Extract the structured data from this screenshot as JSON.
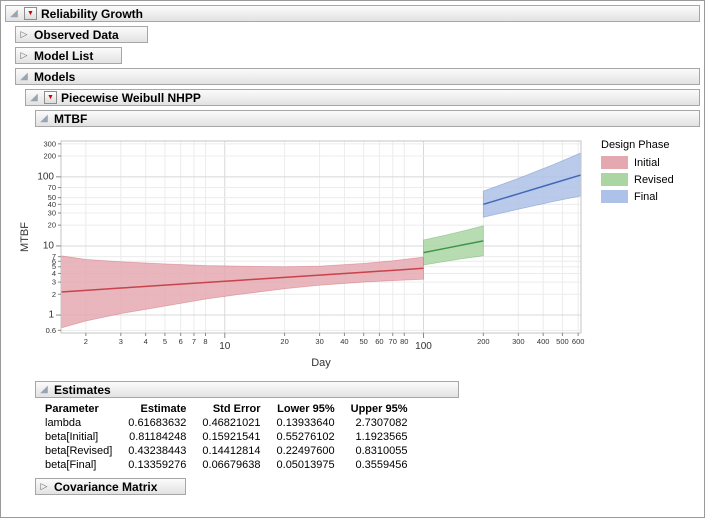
{
  "icons": {
    "disclosure_open": "◢",
    "disclosure_closed": "▷",
    "red_triangle": "▼"
  },
  "outline": {
    "reliability_growth": "Reliability Growth",
    "observed_data": "Observed Data",
    "model_list": "Model List",
    "models": "Models",
    "piecewise_weibull_nhpp": "Piecewise Weibull NHPP",
    "mtbf": "MTBF",
    "estimates_title": "Estimates",
    "covariance_matrix": "Covariance Matrix"
  },
  "chart_data": {
    "type": "line",
    "title": "MTBF",
    "xlabel": "Day",
    "ylabel": "MTBF",
    "x_scale": "log",
    "y_scale": "log",
    "xlim": [
      1.5,
      620
    ],
    "ylim": [
      0.55,
      330
    ],
    "x_ticks": [
      2,
      3,
      4,
      5,
      6,
      7,
      8,
      10,
      20,
      30,
      40,
      50,
      60,
      70,
      80,
      100,
      200,
      300,
      400,
      500,
      600
    ],
    "x_major_ticks": [
      10,
      100
    ],
    "y_ticks": [
      0.6,
      1,
      2,
      3,
      4,
      5,
      6,
      7,
      10,
      20,
      30,
      40,
      50,
      70,
      100,
      200,
      300
    ],
    "y_major_ticks": [
      1,
      10,
      100
    ],
    "grid": true,
    "legend_title": "Design Phase",
    "legend_position": "right",
    "series": [
      {
        "name": "Initial",
        "color": "#c8434b",
        "band_color": "#e4a9b0",
        "x": [
          1.5,
          2,
          3,
          5,
          8,
          12,
          20,
          30,
          50,
          70,
          100
        ],
        "y": [
          2.16,
          2.28,
          2.46,
          2.71,
          2.96,
          3.19,
          3.51,
          3.79,
          4.17,
          4.44,
          4.75
        ],
        "lower": [
          0.65,
          0.82,
          1.05,
          1.35,
          1.7,
          2.0,
          2.4,
          2.7,
          3.0,
          3.15,
          3.3
        ],
        "upper": [
          7.2,
          6.4,
          5.9,
          5.5,
          5.2,
          5.1,
          5.0,
          5.1,
          5.6,
          6.1,
          6.9
        ]
      },
      {
        "name": "Revised",
        "color": "#3f9648",
        "band_color": "#abd6a4",
        "x": [
          100,
          130,
          160,
          200
        ],
        "y": [
          8.0,
          9.28,
          10.45,
          11.85
        ],
        "lower": [
          5.3,
          6.0,
          6.6,
          7.2
        ],
        "upper": [
          12.2,
          14.4,
          16.6,
          19.6
        ]
      },
      {
        "name": "Final",
        "color": "#4268b3",
        "band_color": "#aec1e8",
        "x": [
          200,
          300,
          450,
          620
        ],
        "y": [
          40,
          56.8,
          80.7,
          106.6
        ],
        "lower": [
          26,
          34,
          44,
          53
        ],
        "upper": [
          62,
          95,
          150,
          222
        ]
      }
    ]
  },
  "estimates": {
    "columns": [
      "Parameter",
      "Estimate",
      "Std Error",
      "Lower 95%",
      "Upper 95%"
    ],
    "rows": [
      [
        "lambda",
        "0.61683632",
        "0.46821021",
        "0.13933640",
        "2.7307082"
      ],
      [
        "beta[Initial]",
        "0.81184248",
        "0.15921541",
        "0.55276102",
        "1.1923565"
      ],
      [
        "beta[Revised]",
        "0.43238443",
        "0.14412814",
        "0.22497600",
        "0.8310055"
      ],
      [
        "beta[Final]",
        "0.13359276",
        "0.06679638",
        "0.05013975",
        "0.3559456"
      ]
    ]
  }
}
